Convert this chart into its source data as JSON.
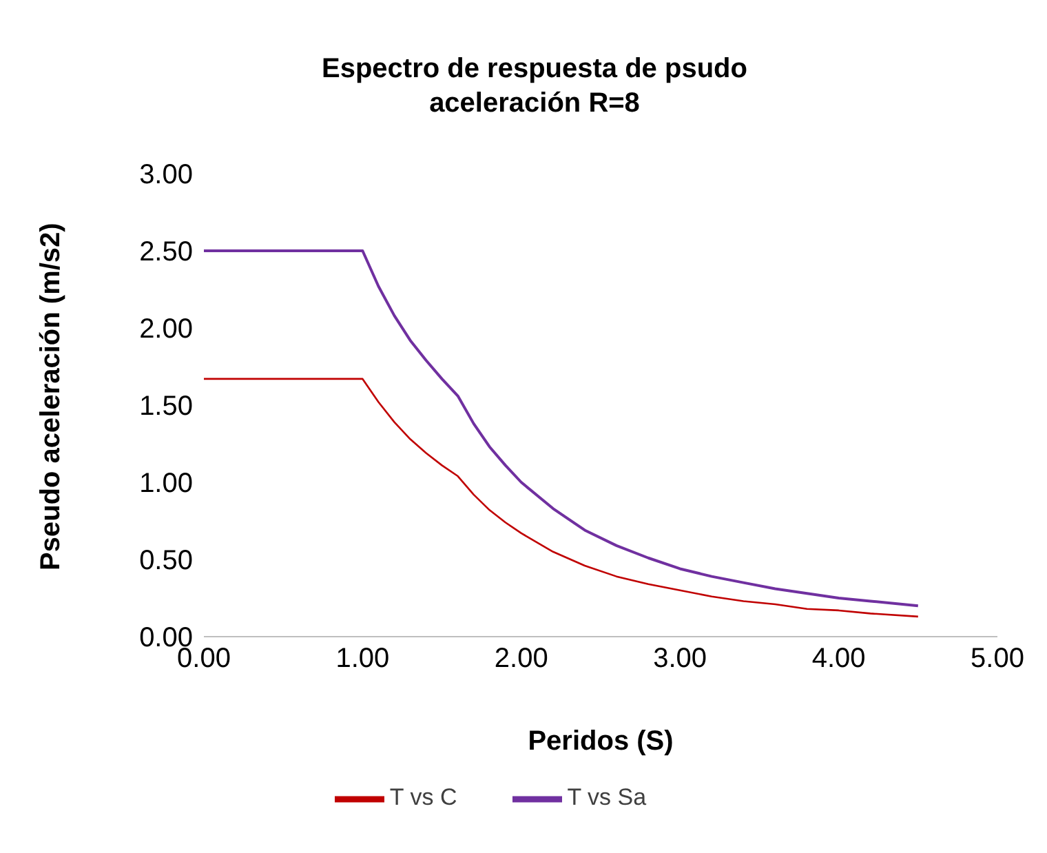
{
  "chart_data": {
    "type": "line",
    "title": "Espectro de respuesta de psudo aceleración R=8",
    "xlabel": "Peridos (S)",
    "ylabel": "Pseudo aceleración (m/s2)",
    "x": [
      0,
      1.0,
      1.1,
      1.2,
      1.3,
      1.4,
      1.5,
      1.6,
      1.7,
      1.8,
      1.9,
      2.0,
      2.2,
      2.4,
      2.6,
      2.8,
      3.0,
      3.2,
      3.4,
      3.6,
      3.8,
      4.0,
      4.2,
      4.5
    ],
    "series": [
      {
        "name": "T vs Sa",
        "color": "#7030a0",
        "values": [
          2.5,
          2.5,
          2.27,
          2.08,
          1.92,
          1.79,
          1.67,
          1.56,
          1.38,
          1.23,
          1.11,
          1.0,
          0.83,
          0.69,
          0.59,
          0.51,
          0.44,
          0.39,
          0.35,
          0.31,
          0.28,
          0.25,
          0.23,
          0.2
        ]
      },
      {
        "name": "T vs C",
        "color": "#c00000",
        "values": [
          1.67,
          1.67,
          1.52,
          1.39,
          1.28,
          1.19,
          1.11,
          1.04,
          0.92,
          0.82,
          0.74,
          0.67,
          0.55,
          0.46,
          0.39,
          0.34,
          0.3,
          0.26,
          0.23,
          0.21,
          0.18,
          0.17,
          0.15,
          0.13
        ]
      }
    ],
    "xlim": [
      0,
      5
    ],
    "xticks": [
      {
        "value": 0,
        "label": "0.00"
      },
      {
        "value": 1,
        "label": "1.00"
      },
      {
        "value": 2,
        "label": "2.00"
      },
      {
        "value": 3,
        "label": "3.00"
      },
      {
        "value": 4,
        "label": "4.00"
      },
      {
        "value": 5,
        "label": "5.00"
      }
    ],
    "ylim": [
      0,
      3
    ],
    "yticks": [
      {
        "value": 0,
        "label": "0.00"
      },
      {
        "value": 0.5,
        "label": "0.50"
      },
      {
        "value": 1,
        "label": "1.00"
      },
      {
        "value": 1.5,
        "label": "1.50"
      },
      {
        "value": 2,
        "label": "2.00"
      },
      {
        "value": 2.5,
        "label": "2.50"
      },
      {
        "value": 3,
        "label": "3.00"
      }
    ],
    "grid": false,
    "legend": "bottom",
    "marker": "none",
    "line_style": "solid"
  }
}
